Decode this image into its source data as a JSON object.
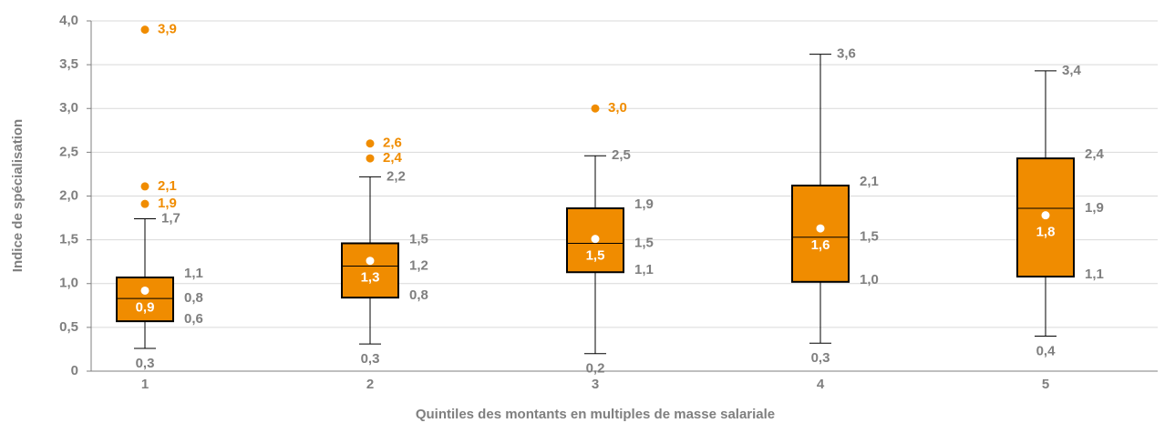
{
  "chart_data": {
    "type": "box",
    "y_label": "Indice de spécialisation",
    "x_label": "Quintiles des montants en multiples de masse salariale",
    "categories": [
      "1",
      "2",
      "3",
      "4",
      "5"
    ],
    "color": "#f08c00",
    "outlier_color": "#f08c00",
    "label_color": "#7f7f7f",
    "ylim": [
      0,
      4
    ],
    "yticks": [
      0,
      {
        "value": 0.5,
        "label": "0,5"
      },
      {
        "value": 1,
        "label": "1,0"
      },
      {
        "value": 1.5,
        "label": "1,5"
      },
      {
        "value": 2,
        "label": "2,0"
      },
      {
        "value": 2.5,
        "label": "2,5"
      },
      {
        "value": 3,
        "label": "3,0"
      },
      {
        "value": 3.5,
        "label": "3,5"
      },
      {
        "value": 4,
        "label": "4,0"
      }
    ],
    "grid": true,
    "boxes": [
      {
        "min": 0.26,
        "q1": 0.57,
        "median": 0.83,
        "q3": 1.07,
        "max": 1.74,
        "mean": 0.92,
        "outliers": [
          1.91,
          2.11,
          3.9
        ],
        "value_labels": {
          "min": "0,3",
          "q1": "0,6",
          "median": "0,8",
          "q3": "1,1",
          "max": "1,7",
          "mean": "0,9",
          "outliers": [
            "1,9",
            "2,1",
            "3,9"
          ]
        }
      },
      {
        "min": 0.31,
        "q1": 0.84,
        "median": 1.2,
        "q3": 1.46,
        "max": 2.22,
        "mean": 1.26,
        "outliers": [
          2.43,
          2.6
        ],
        "value_labels": {
          "min": "0,3",
          "q1": "0,8",
          "median": "1,2",
          "q3": "1,5",
          "max": "2,2",
          "mean": "1,3",
          "outliers": [
            "2,4",
            "2,6"
          ]
        }
      },
      {
        "min": 0.2,
        "q1": 1.13,
        "median": 1.46,
        "q3": 1.86,
        "max": 2.46,
        "mean": 1.51,
        "outliers": [
          3.0
        ],
        "value_labels": {
          "min": "0,2",
          "q1": "1,1",
          "median": "1,5",
          "q3": "1,9",
          "max": "2,5",
          "mean": "1,5",
          "outliers": [
            "3,0"
          ]
        }
      },
      {
        "min": 0.32,
        "q1": 1.02,
        "median": 1.53,
        "q3": 2.12,
        "max": 3.62,
        "mean": 1.63,
        "outliers": [],
        "value_labels": {
          "min": "0,3",
          "q1": "1,0",
          "median": "1,5",
          "q3": "2,1",
          "max": "3,6",
          "mean": "1,6",
          "outliers": []
        }
      },
      {
        "min": 0.4,
        "q1": 1.08,
        "median": 1.86,
        "q3": 2.43,
        "max": 3.43,
        "mean": 1.78,
        "outliers": [],
        "value_labels": {
          "min": "0,4",
          "q1": "1,1",
          "median": "1,9",
          "q3": "2,4",
          "max": "3,4",
          "mean": "1,8",
          "outliers": []
        }
      }
    ]
  }
}
